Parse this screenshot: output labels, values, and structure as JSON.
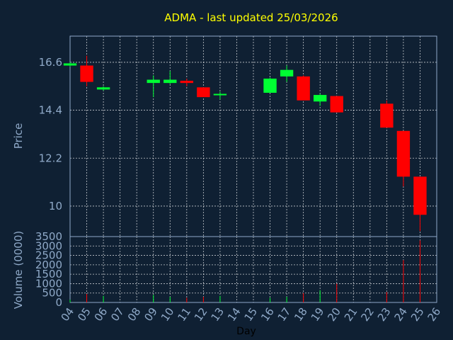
{
  "chart_data": {
    "type": "candlestick",
    "title": "ADMA - last updated 25/03/2026",
    "ylabel_price": "Price",
    "ylabel_volume": "Volume (0000)",
    "xlabel": "Day",
    "price_ylim": [
      8.6,
      17.8
    ],
    "price_ticks": [
      "16.6",
      "14.4",
      "12.2",
      "10"
    ],
    "volume_ylim": [
      0,
      3500
    ],
    "volume_ticks": [
      "3500",
      "3000",
      "2500",
      "2000",
      "1500",
      "1000",
      "500",
      "0"
    ],
    "x_ticks": [
      "04",
      "05",
      "06",
      "07",
      "08",
      "09",
      "10",
      "11",
      "12",
      "13",
      "14",
      "15",
      "16",
      "17",
      "18",
      "19",
      "20",
      "21",
      "22",
      "23",
      "24",
      "25",
      "26"
    ],
    "grid": true,
    "up_color": "#00ff33",
    "down_color": "#ff0000",
    "candles": [
      {
        "day": 4,
        "open": 16.45,
        "close": 16.55,
        "high": 16.6,
        "low": 16.4,
        "volume": 150
      },
      {
        "day": 5,
        "open": 16.45,
        "close": 15.7,
        "high": 16.9,
        "low": 15.5,
        "volume": 450
      },
      {
        "day": 6,
        "open": 15.35,
        "close": 15.45,
        "high": 15.5,
        "low": 15.3,
        "volume": 350
      },
      {
        "day": 9,
        "open": 15.65,
        "close": 15.8,
        "high": 16.0,
        "low": 15.0,
        "volume": 400
      },
      {
        "day": 10,
        "open": 15.65,
        "close": 15.8,
        "high": 16.2,
        "low": 15.6,
        "volume": 300
      },
      {
        "day": 11,
        "open": 15.75,
        "close": 15.65,
        "high": 15.85,
        "low": 15.5,
        "volume": 250
      },
      {
        "day": 12,
        "open": 15.45,
        "close": 15.0,
        "high": 15.45,
        "low": 15.0,
        "volume": 300
      },
      {
        "day": 13,
        "open": 15.1,
        "close": 15.15,
        "high": 15.25,
        "low": 14.9,
        "volume": 350
      },
      {
        "day": 16,
        "open": 15.2,
        "close": 15.85,
        "high": 15.9,
        "low": 15.2,
        "volume": 250
      },
      {
        "day": 17,
        "open": 15.95,
        "close": 16.25,
        "high": 16.45,
        "low": 15.7,
        "volume": 300
      },
      {
        "day": 18,
        "open": 15.95,
        "close": 14.85,
        "high": 16.0,
        "low": 14.85,
        "volume": 500
      },
      {
        "day": 19,
        "open": 14.8,
        "close": 15.1,
        "high": 15.15,
        "low": 14.6,
        "volume": 650
      },
      {
        "day": 20,
        "open": 15.05,
        "close": 14.3,
        "high": 15.05,
        "low": 14.3,
        "volume": 1000
      },
      {
        "day": 23,
        "open": 14.7,
        "close": 13.6,
        "high": 14.85,
        "low": 13.6,
        "volume": 550
      },
      {
        "day": 24,
        "open": 13.45,
        "close": 11.35,
        "high": 13.45,
        "low": 10.9,
        "volume": 2250
      },
      {
        "day": 25,
        "open": 11.35,
        "close": 9.6,
        "high": 11.35,
        "low": 8.85,
        "volume": 3300
      }
    ]
  }
}
